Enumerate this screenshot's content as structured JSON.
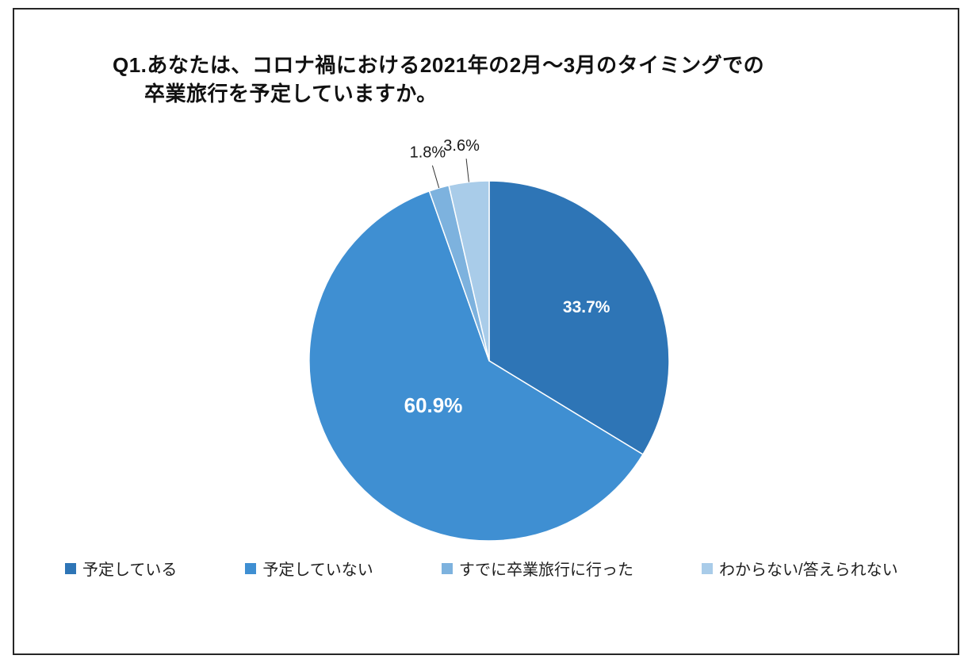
{
  "chart_data": {
    "type": "pie",
    "title_lines": [
      "Q1.あなたは、コロナ禍における2021年の2月〜3月のタイミングでの",
      "卒業旅行を予定していますか。"
    ],
    "legend_position": "bottom",
    "start_angle_deg": 0,
    "direction": "clockwise",
    "slices": [
      {
        "label": "予定している",
        "value": 33.7,
        "display": "33.7%",
        "color": "#2e75b6",
        "label_placement": "inside",
        "emphasized": false
      },
      {
        "label": "予定していない",
        "value": 60.9,
        "display": "60.9%",
        "color": "#3f8fd2",
        "label_placement": "inside",
        "emphasized": true
      },
      {
        "label": "すでに卒業旅行に行った",
        "value": 1.8,
        "display": "1.8%",
        "color": "#7db2de",
        "label_placement": "outside",
        "emphasized": false
      },
      {
        "label": "わからない/答えられない",
        "value": 3.6,
        "display": "3.6%",
        "color": "#a9cce9",
        "label_placement": "outside",
        "emphasized": false
      }
    ]
  }
}
